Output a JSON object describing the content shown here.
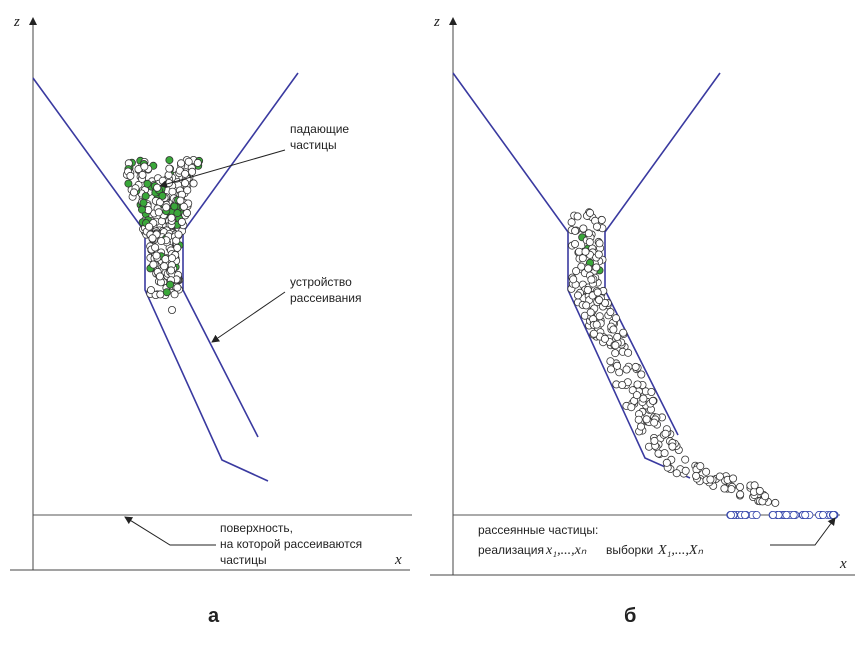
{
  "panels": [
    {
      "label": "а",
      "axis_x": "x",
      "axis_z": "z",
      "annotations": [
        {
          "lines": [
            "падающие",
            "частицы"
          ]
        },
        {
          "lines": [
            "устройство",
            "рассеивания"
          ]
        },
        {
          "lines": [
            "поверхность,",
            "на которой рассеиваются",
            "частицы"
          ]
        }
      ]
    },
    {
      "label": "б",
      "axis_x": "x",
      "axis_z": "z",
      "annotations": [
        {
          "lines": [
            "рассеянные частицы:"
          ]
        },
        {
          "parts": [
            "реализация",
            "x₁,...,xₙ",
            "выборки",
            "X₁,...,Xₙ"
          ]
        }
      ]
    }
  ]
}
